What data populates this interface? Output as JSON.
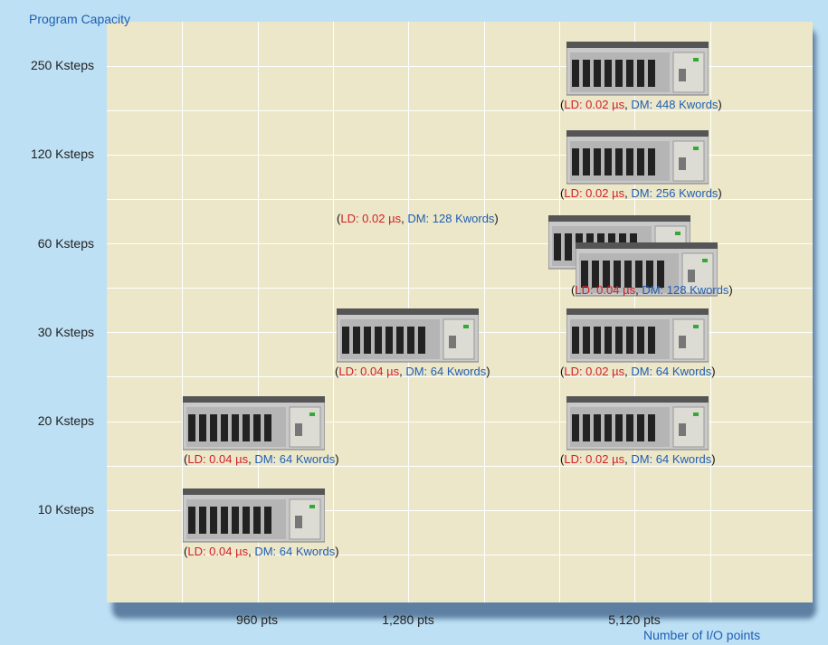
{
  "chart_data": {
    "type": "scatter",
    "title": "",
    "ylabel": "Program Capacity",
    "xlabel": "Number of I/O points",
    "y_ticks": [
      "250 Ksteps",
      "120 Ksteps",
      "60 Ksteps",
      "30 Ksteps",
      "20 Ksteps",
      "10 Ksteps"
    ],
    "x_ticks": [
      "960 pts",
      "1,280 pts",
      "5,120 pts"
    ],
    "grid": true,
    "points": [
      {
        "x": "960 pts",
        "y": "10 Ksteps",
        "ld": "LD: 0.04 µs",
        "dm": "DM: 64 Kwords"
      },
      {
        "x": "960 pts",
        "y": "20 Ksteps",
        "ld": "LD: 0.04 µs",
        "dm": "DM: 64 Kwords"
      },
      {
        "x": "1,280 pts",
        "y": "30 Ksteps",
        "ld": "LD: 0.04 µs",
        "dm": "DM: 64 Kwords"
      },
      {
        "x": "5,120 pts",
        "y": "20 Ksteps",
        "ld": "LD: 0.02 µs",
        "dm": "DM: 64 Kwords"
      },
      {
        "x": "5,120 pts",
        "y": "30 Ksteps",
        "ld": "LD: 0.02 µs",
        "dm": "DM: 64 Kwords"
      },
      {
        "x": "5,120 pts",
        "y": "60 Ksteps",
        "ld": "LD: 0.04 µs",
        "dm": "DM: 128 Kwords"
      },
      {
        "x": "5,120 pts",
        "y": "60 Ksteps",
        "ld": "LD: 0.02 µs",
        "dm": "DM: 128 Kwords"
      },
      {
        "x": "5,120 pts",
        "y": "120 Ksteps",
        "ld": "LD: 0.02 µs",
        "dm": "DM: 256 Kwords"
      },
      {
        "x": "5,120 pts",
        "y": "250 Ksteps",
        "ld": "LD: 0.02 µs",
        "dm": "DM: 448 Kwords"
      }
    ]
  },
  "colors": {
    "background": "#bde0f5",
    "plot": "#ece7c8",
    "grid": "#ffffff",
    "ld": "#d21f28",
    "dm": "#1f5fb5",
    "axis_title": "#1f5fb5",
    "plc_body": "#c9c9c9"
  },
  "icons": {
    "plc": "plc-rack-icon"
  }
}
